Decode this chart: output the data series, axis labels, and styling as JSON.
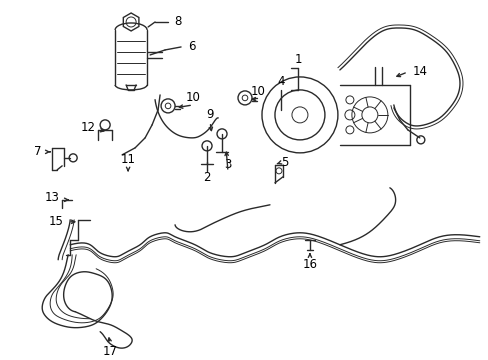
{
  "background_color": "#ffffff",
  "line_color": "#2a2a2a",
  "label_color": "#000000",
  "fig_width": 4.89,
  "fig_height": 3.6,
  "dpi": 100,
  "lw": 1.0,
  "lw_thick": 1.6,
  "lw_thin": 0.7,
  "font_size": 8.5
}
